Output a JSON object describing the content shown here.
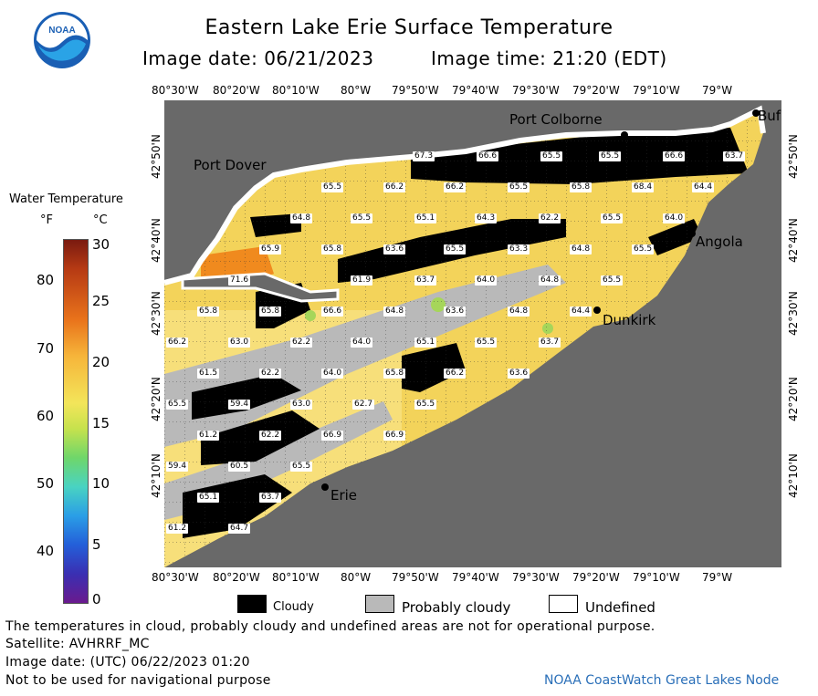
{
  "header": {
    "title": "Eastern Lake Erie Surface Temperature",
    "image_date": "Image date: 06/21/2023",
    "image_time": "Image time: 21:20 (EDT)"
  },
  "logo": {
    "text": "NOAA"
  },
  "legend": {
    "title": "Water Temperature",
    "unit_f": "°F",
    "unit_c": "°C",
    "f_ticks": [
      "80",
      "70",
      "60",
      "50",
      "40"
    ],
    "c_ticks": [
      "30",
      "25",
      "20",
      "15",
      "10",
      "5",
      "0"
    ]
  },
  "axes": {
    "lon_labels": [
      "80°30'W",
      "80°20'W",
      "80°10'W",
      "80°W",
      "79°50'W",
      "79°40'W",
      "79°30'W",
      "79°20'W",
      "79°10'W",
      "79°W"
    ],
    "lat_labels": [
      "42°50'N",
      "42°40'N",
      "42°30'N",
      "42°20'N",
      "42°10'N"
    ]
  },
  "places": {
    "port_colborne": "Port Colborne",
    "port_dover": "Port Dover",
    "angola": "Angola",
    "dunkirk": "Dunkirk",
    "erie": "Erie",
    "buffalo": "Buf"
  },
  "temperatures": [
    "67.3",
    "66.6",
    "65.5",
    "65.5",
    "66.6",
    "63.7",
    "65.5",
    "66.2",
    "66.2",
    "65.5",
    "65.8",
    "68.4",
    "64.4",
    "64.8",
    "65.5",
    "65.1",
    "64.3",
    "62.2",
    "65.5",
    "64.0",
    "65.9",
    "65.8",
    "63.6",
    "65.5",
    "63.3",
    "64.8",
    "65.5",
    "71.6",
    "61.9",
    "63.7",
    "64.0",
    "64.8",
    "65.5",
    "65.8",
    "65.8",
    "66.6",
    "64.8",
    "63.6",
    "64.8",
    "64.4",
    "66.2",
    "63.0",
    "62.2",
    "64.0",
    "65.1",
    "65.5",
    "63.7",
    "61.5",
    "62.2",
    "64.0",
    "65.8",
    "66.2",
    "63.6",
    "65.5",
    "59.4",
    "63.0",
    "62.7",
    "65.5",
    "61.2",
    "62.2",
    "66.9",
    "66.9",
    "59.4",
    "60.5",
    "65.5",
    "65.1",
    "63.7",
    "61.2",
    "64.7"
  ],
  "cloud_legend": {
    "cloudy": "Cloudy",
    "probably_cloudy": "Probably cloudy",
    "undefined": "Undefined"
  },
  "footer": {
    "disclaimer": "The temperatures in cloud, probably cloudy and undefined areas are not for operational purpose.",
    "satellite": "Satellite: AVHRRF_MC",
    "utc_date": "Image date: (UTC) 06/22/2023  01:20",
    "nav_warning": "Not to be used for navigational purpose",
    "credit": "NOAA CoastWatch Great Lakes Node"
  },
  "colors": {
    "land": "#696969",
    "water_warm": "#f3d35a",
    "water_orange": "#f08a1e",
    "cloud": "#000000",
    "probably_cloudy": "#b9b9b9",
    "credit_blue": "#2a6fb8"
  }
}
